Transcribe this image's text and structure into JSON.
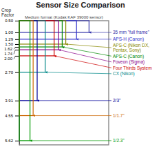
{
  "chart_data": {
    "type": "rectangle",
    "title": "Sensor Size Comparison",
    "ylabel": "Crop\nFactor",
    "starts": [
      0.5,
      0.5,
      0.5,
      0.5,
      0.5,
      0.5,
      0.5,
      0.5,
      0.5,
      0.5,
      0.5
    ],
    "values": [
      5.8,
      1.0,
      1.29,
      1.5,
      1.62,
      1.74,
      2.0,
      2.7,
      3.91,
      4.55,
      5.62
    ],
    "widths": [
      1.0,
      0.78,
      0.64,
      0.52,
      0.48,
      0.44,
      0.39,
      0.29,
      0.2,
      0.155,
      0.12
    ],
    "colors": [
      "#888888",
      "#3333aa",
      "#3333cc",
      "#888800",
      "#008800",
      "#880088",
      "#cc0000",
      "#008888",
      "#000099",
      "#cc6600",
      "#009900"
    ],
    "xlim": [
      0.0,
      1.0
    ],
    "ylim": [
      0.5,
      5.8
    ],
    "yticks": [
      {
        "value": 0.5,
        "label": "0.50"
      },
      {
        "value": 1.0,
        "label": "1.00"
      },
      1.29,
      {
        "value": 1.5,
        "label": "1.50"
      },
      1.62,
      1.74,
      {
        "value": 2.0,
        "label": "2.00"
      },
      {
        "value": 2.7,
        "label": "2.70"
      },
      3.91,
      4.55,
      5.62
    ],
    "tick_labels": "y",
    "annotations": [
      {
        "text": "Medium format (Kodak KAF 39000 sensor)",
        "color": "#444444"
      },
      {
        "text": "35 mm \"full frame\"",
        "color": "#3333aa"
      },
      {
        "text": "APS-H (Canon)",
        "color": "#3333cc"
      },
      {
        "text": "APS-C (Nikon DX,\nPentax, Sony)",
        "color": "#888800"
      },
      {
        "text": "APS-C (Canon)",
        "color": "#008800"
      },
      {
        "text": "Foveon (Sigma)",
        "color": "#880088"
      },
      {
        "text": "Four Thirds System",
        "color": "#cc0000"
      },
      {
        "text": "CX (Nikon)",
        "color": "#008888"
      },
      {
        "text": "2/3\"",
        "color": "#000099"
      },
      {
        "text": "1/1.7\"",
        "color": "#cc6600"
      },
      {
        "text": "1/2.3\"",
        "color": "#009900"
      }
    ]
  }
}
